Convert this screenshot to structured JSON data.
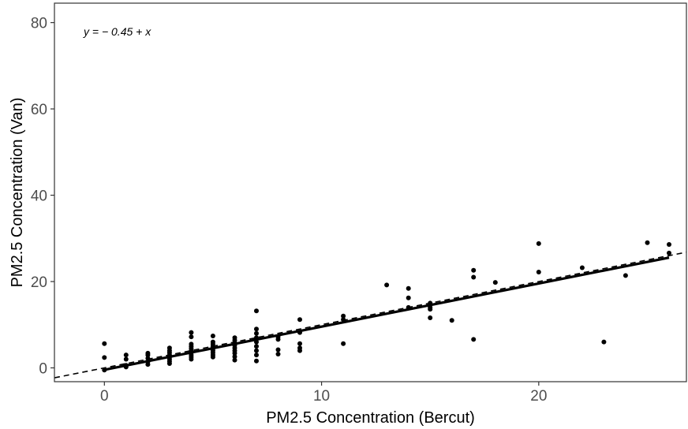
{
  "chart_data": {
    "type": "scatter",
    "title": "",
    "xlabel": "PM2.5 Concentration (Bercut)",
    "ylabel": "PM2.5 Concentration (Van)",
    "xlim": [
      -2.3,
      26.8
    ],
    "ylim": [
      -3.2,
      84.5
    ],
    "x_ticks": [
      0,
      10,
      20
    ],
    "y_ticks": [
      0,
      20,
      40,
      60,
      80
    ],
    "grid": false,
    "legend": "none",
    "annotation": {
      "text": "y = − 0.45 +  x",
      "position": "top-left"
    },
    "points": [
      [
        0,
        5.6
      ],
      [
        0,
        2.4
      ],
      [
        0,
        -0.5
      ],
      [
        1,
        3.0
      ],
      [
        1,
        2.0
      ],
      [
        1,
        0.6
      ],
      [
        1,
        0.2
      ],
      [
        2,
        3.4
      ],
      [
        2,
        3.0
      ],
      [
        2,
        2.2
      ],
      [
        2,
        1.4
      ],
      [
        2,
        0.8
      ],
      [
        3,
        4.6
      ],
      [
        3,
        4.0
      ],
      [
        3,
        3.5
      ],
      [
        3,
        3.0
      ],
      [
        3,
        2.5
      ],
      [
        3,
        2.0
      ],
      [
        3,
        1.5
      ],
      [
        3,
        1.0
      ],
      [
        4,
        8.2
      ],
      [
        4,
        7.2
      ],
      [
        4,
        5.5
      ],
      [
        4,
        5.0
      ],
      [
        4,
        4.5
      ],
      [
        4,
        4.0
      ],
      [
        4,
        3.5
      ],
      [
        4,
        3.0
      ],
      [
        4,
        2.5
      ],
      [
        4,
        2.0
      ],
      [
        5,
        7.4
      ],
      [
        5,
        6.0
      ],
      [
        5,
        5.5
      ],
      [
        5,
        5.0
      ],
      [
        5,
        4.5
      ],
      [
        5,
        4.0
      ],
      [
        5,
        3.5
      ],
      [
        5,
        3.0
      ],
      [
        5,
        2.5
      ],
      [
        6,
        7.0
      ],
      [
        6,
        6.4
      ],
      [
        6,
        5.8
      ],
      [
        6,
        5.2
      ],
      [
        6,
        4.6
      ],
      [
        6,
        4.0
      ],
      [
        6,
        3.4
      ],
      [
        6,
        2.6
      ],
      [
        6,
        1.8
      ],
      [
        7,
        13.2
      ],
      [
        7,
        9.0
      ],
      [
        7,
        8.0
      ],
      [
        7,
        7.0
      ],
      [
        7,
        6.0
      ],
      [
        7,
        5.0
      ],
      [
        7,
        4.0
      ],
      [
        7,
        3.0
      ],
      [
        7,
        1.6
      ],
      [
        8,
        7.2
      ],
      [
        8,
        6.6
      ],
      [
        8,
        4.2
      ],
      [
        8,
        3.2
      ],
      [
        9,
        11.2
      ],
      [
        9,
        8.2
      ],
      [
        9,
        5.6
      ],
      [
        9,
        4.6
      ],
      [
        9,
        4.0
      ],
      [
        11,
        12.0
      ],
      [
        11,
        11.2
      ],
      [
        11,
        5.6
      ],
      [
        13,
        19.2
      ],
      [
        14,
        18.4
      ],
      [
        14,
        16.2
      ],
      [
        14,
        14.0
      ],
      [
        15,
        15.0
      ],
      [
        15,
        14.0
      ],
      [
        15,
        13.6
      ],
      [
        15,
        11.6
      ],
      [
        16,
        11.0
      ],
      [
        17,
        22.6
      ],
      [
        17,
        21.0
      ],
      [
        17,
        6.6
      ],
      [
        18,
        19.8
      ],
      [
        20,
        28.8
      ],
      [
        20,
        22.2
      ],
      [
        22,
        23.2
      ],
      [
        23,
        6.0
      ],
      [
        24,
        21.4
      ],
      [
        25,
        29.0
      ],
      [
        26,
        28.6
      ],
      [
        26,
        26.6
      ]
    ],
    "fit_line": {
      "style": "solid",
      "color": "#000000",
      "x": [
        0,
        26
      ],
      "y": [
        -0.45,
        25.55
      ]
    },
    "reference_line": {
      "style": "dashed",
      "color": "#000000",
      "x": [
        -2.3,
        26.8
      ],
      "y": [
        -2.3,
        26.8
      ]
    },
    "colors": {
      "points": "#000000",
      "axis_text": "#4d4d4d",
      "panel_border": "#333333"
    }
  }
}
